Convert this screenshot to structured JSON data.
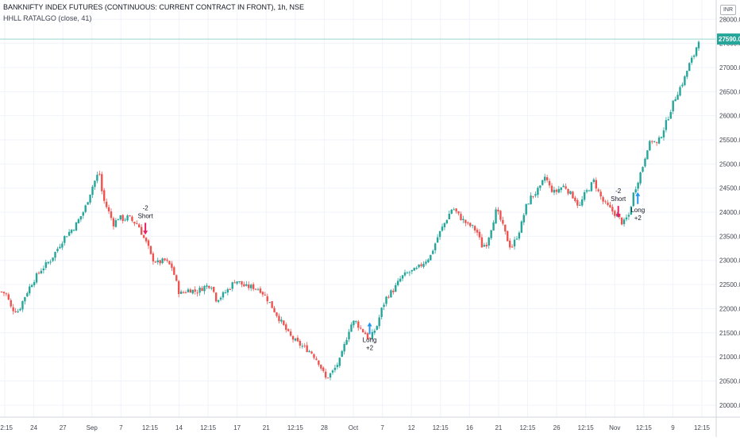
{
  "header": {
    "title": "BANKNIFTY INDEX FUTURES (CONTINUOUS: CURRENT CONTRACT IN FRONT), 1h, NSE",
    "indicator": "HHLL RATALGO (close, 41)",
    "currency": "INR"
  },
  "chart_data": {
    "type": "candlestick",
    "title": "BANKNIFTY INDEX FUTURES (CONTINUOUS: CURRENT CONTRACT IN FRONT), 1h, NSE",
    "ylim": [
      19750,
      28400
    ],
    "y_ticks": [
      20000,
      20500,
      21000,
      21500,
      22000,
      22500,
      23000,
      23500,
      24000,
      24500,
      25000,
      25500,
      26000,
      26500,
      27000,
      27500,
      28000
    ],
    "y_tick_labels": [
      "20000.00",
      "20500.00",
      "21000.00",
      "21500.00",
      "22000.00",
      "22500.00",
      "23000.00",
      "23500.00",
      "24000.00",
      "24500.00",
      "25000.00",
      "25500.00",
      "26000.00",
      "26500.00",
      "27000.00",
      "27500.00",
      "28000.00"
    ],
    "x_ticks": [
      "12:15",
      "24",
      "27",
      "Sep",
      "7",
      "12:15",
      "14",
      "12:15",
      "17",
      "21",
      "12:15",
      "28",
      "Oct",
      "7",
      "12",
      "12:15",
      "16",
      "21",
      "12:15",
      "26",
      "12:15",
      "Nov",
      "12:15",
      "9",
      "12:15"
    ],
    "last_price": 27590,
    "last_price_label": "27590.00",
    "grid": true,
    "up_color": "#26a69a",
    "down_color": "#ef5350",
    "close_path": [
      [
        0,
        22350
      ],
      [
        0.2,
        22300
      ],
      [
        0.4,
        22000
      ],
      [
        0.7,
        21950
      ],
      [
        0.9,
        22200
      ],
      [
        1.2,
        22500
      ],
      [
        1.6,
        22800
      ],
      [
        2.0,
        23000
      ],
      [
        2.3,
        23250
      ],
      [
        2.6,
        23500
      ],
      [
        3.0,
        23700
      ],
      [
        3.4,
        24050
      ],
      [
        3.7,
        24500
      ],
      [
        4.0,
        24850
      ],
      [
        4.15,
        24300
      ],
      [
        4.4,
        24000
      ],
      [
        4.6,
        23750
      ],
      [
        4.8,
        23900
      ],
      [
        5.0,
        23850
      ],
      [
        5.2,
        23900
      ],
      [
        5.4,
        23800
      ],
      [
        5.6,
        23750
      ],
      [
        5.8,
        23500
      ],
      [
        6.0,
        23300
      ],
      [
        6.15,
        23050
      ],
      [
        6.4,
        22950
      ],
      [
        6.7,
        23000
      ],
      [
        7.0,
        22850
      ],
      [
        7.3,
        22300
      ],
      [
        7.7,
        22400
      ],
      [
        8.0,
        22350
      ],
      [
        8.3,
        22450
      ],
      [
        8.6,
        22500
      ],
      [
        8.8,
        22200
      ],
      [
        9.0,
        22250
      ],
      [
        9.3,
        22400
      ],
      [
        9.6,
        22600
      ],
      [
        10.0,
        22450
      ],
      [
        10.3,
        22450
      ],
      [
        10.6,
        22400
      ],
      [
        10.9,
        22200
      ],
      [
        11.2,
        21950
      ],
      [
        11.5,
        21700
      ],
      [
        11.8,
        21450
      ],
      [
        12.1,
        21300
      ],
      [
        12.4,
        21200
      ],
      [
        12.7,
        21100
      ],
      [
        13.0,
        20900
      ],
      [
        13.3,
        20550
      ],
      [
        13.6,
        20700
      ],
      [
        13.9,
        20950
      ],
      [
        14.1,
        21300
      ],
      [
        14.3,
        21650
      ],
      [
        14.5,
        21750
      ],
      [
        14.7,
        21600
      ],
      [
        14.9,
        21500
      ],
      [
        15.1,
        21350
      ],
      [
        15.4,
        21650
      ],
      [
        15.6,
        22000
      ],
      [
        15.8,
        22250
      ],
      [
        16.1,
        22400
      ],
      [
        16.4,
        22650
      ],
      [
        16.7,
        22750
      ],
      [
        17.0,
        22800
      ],
      [
        17.3,
        22950
      ],
      [
        17.6,
        23100
      ],
      [
        17.9,
        23500
      ],
      [
        18.2,
        23800
      ],
      [
        18.5,
        24100
      ],
      [
        18.8,
        23900
      ],
      [
        19.1,
        23750
      ],
      [
        19.3,
        23700
      ],
      [
        19.5,
        23600
      ],
      [
        19.7,
        23300
      ],
      [
        19.9,
        23350
      ],
      [
        20.1,
        23700
      ],
      [
        20.3,
        24050
      ],
      [
        20.5,
        23800
      ],
      [
        20.7,
        23500
      ],
      [
        20.9,
        23250
      ],
      [
        21.1,
        23450
      ],
      [
        21.3,
        23700
      ],
      [
        21.5,
        24100
      ],
      [
        21.7,
        24300
      ],
      [
        21.9,
        24400
      ],
      [
        22.1,
        24500
      ],
      [
        22.3,
        24750
      ],
      [
        22.5,
        24500
      ],
      [
        22.7,
        24400
      ],
      [
        22.9,
        24500
      ],
      [
        23.1,
        24550
      ],
      [
        23.3,
        24400
      ],
      [
        23.5,
        24300
      ],
      [
        23.7,
        24100
      ],
      [
        23.9,
        24350
      ],
      [
        24.1,
        24500
      ],
      [
        24.3,
        24650
      ],
      [
        24.5,
        24400
      ],
      [
        24.7,
        24200
      ],
      [
        24.9,
        24100
      ],
      [
        25.1,
        24000
      ],
      [
        25.3,
        23900
      ],
      [
        25.5,
        23750
      ],
      [
        25.6,
        23850
      ],
      [
        25.75,
        23950
      ],
      [
        25.9,
        24350
      ],
      [
        26.1,
        24650
      ],
      [
        26.3,
        24950
      ],
      [
        26.5,
        25350
      ],
      [
        26.7,
        25500
      ],
      [
        26.9,
        25400
      ],
      [
        27.1,
        25650
      ],
      [
        27.3,
        25900
      ],
      [
        27.5,
        26200
      ],
      [
        27.7,
        26450
      ],
      [
        27.9,
        26650
      ],
      [
        28.0,
        26750
      ],
      [
        28.2,
        27050
      ],
      [
        28.4,
        27250
      ],
      [
        28.6,
        27590
      ]
    ],
    "annotations": [
      {
        "text": [
          "-2",
          "Short"
        ],
        "type": "short",
        "x_index": 5.9,
        "price": 23550
      },
      {
        "text": [
          "Long",
          "+2"
        ],
        "type": "long",
        "x_index": 15.1,
        "price": 21700
      },
      {
        "text": [
          "-2",
          "Short"
        ],
        "type": "short",
        "x_index": 25.3,
        "price": 23900
      },
      {
        "text": [
          "Long",
          "+2"
        ],
        "type": "long",
        "x_index": 26.1,
        "price": 24400
      }
    ]
  }
}
